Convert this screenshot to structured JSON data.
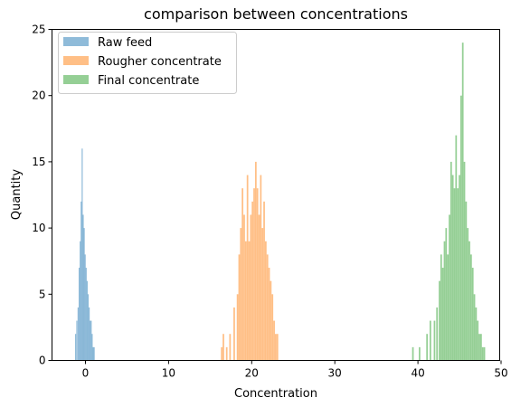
{
  "chart_data": {
    "type": "histogram",
    "title": "comparison between concentrations",
    "xlabel": "Concentration",
    "ylabel": "Quantity",
    "xlim": [
      -2.5,
      50.5
    ],
    "ylim": [
      0,
      25
    ],
    "xticks": [
      0,
      10,
      20,
      30,
      40,
      50
    ],
    "yticks": [
      0,
      5,
      10,
      15,
      20,
      25
    ],
    "grid": false,
    "legend_position": "top-left",
    "series": [
      {
        "name": "Raw feed",
        "color": "#1f77b4",
        "bin_width": 0.12,
        "bins": [
          [
            -1.25,
            2
          ],
          [
            -1.1,
            3
          ],
          [
            -0.95,
            4
          ],
          [
            -0.82,
            7
          ],
          [
            -0.7,
            9
          ],
          [
            -0.58,
            12
          ],
          [
            -0.46,
            16
          ],
          [
            -0.34,
            11
          ],
          [
            -0.22,
            10
          ],
          [
            -0.1,
            8
          ],
          [
            0.02,
            7
          ],
          [
            0.14,
            6
          ],
          [
            0.26,
            5
          ],
          [
            0.38,
            4
          ],
          [
            0.5,
            3
          ],
          [
            0.62,
            3
          ],
          [
            0.74,
            2
          ],
          [
            0.86,
            1
          ],
          [
            0.98,
            1
          ]
        ]
      },
      {
        "name": "Rougher concentrate",
        "color": "#ff7f0e",
        "bin_width": 0.19,
        "bins": [
          [
            16.3,
            1
          ],
          [
            16.5,
            2
          ],
          [
            16.9,
            1
          ],
          [
            17.3,
            2
          ],
          [
            17.8,
            4
          ],
          [
            18.2,
            5
          ],
          [
            18.4,
            8
          ],
          [
            18.6,
            10
          ],
          [
            18.8,
            13
          ],
          [
            19.0,
            11
          ],
          [
            19.2,
            9
          ],
          [
            19.4,
            14
          ],
          [
            19.6,
            9
          ],
          [
            19.8,
            11
          ],
          [
            20.0,
            12
          ],
          [
            20.2,
            13
          ],
          [
            20.4,
            15
          ],
          [
            20.6,
            13
          ],
          [
            20.8,
            11
          ],
          [
            21.0,
            14
          ],
          [
            21.2,
            10
          ],
          [
            21.4,
            12
          ],
          [
            21.6,
            9
          ],
          [
            21.8,
            8
          ],
          [
            22.0,
            7
          ],
          [
            22.2,
            6
          ],
          [
            22.4,
            5
          ],
          [
            22.6,
            3
          ],
          [
            22.8,
            2
          ],
          [
            23.0,
            2
          ]
        ]
      },
      {
        "name": "Final concentrate",
        "color": "#2ca02c",
        "bin_width": 0.19,
        "bins": [
          [
            39.3,
            1
          ],
          [
            40.1,
            1
          ],
          [
            41.0,
            2
          ],
          [
            41.4,
            3
          ],
          [
            41.9,
            3
          ],
          [
            42.2,
            4
          ],
          [
            42.5,
            6
          ],
          [
            42.7,
            8
          ],
          [
            42.9,
            7
          ],
          [
            43.1,
            9
          ],
          [
            43.3,
            10
          ],
          [
            43.5,
            8
          ],
          [
            43.7,
            11
          ],
          [
            43.9,
            15
          ],
          [
            44.1,
            14
          ],
          [
            44.3,
            13
          ],
          [
            44.5,
            17
          ],
          [
            44.7,
            13
          ],
          [
            44.9,
            14
          ],
          [
            45.1,
            20
          ],
          [
            45.3,
            24
          ],
          [
            45.5,
            15
          ],
          [
            45.7,
            12
          ],
          [
            45.9,
            10
          ],
          [
            46.1,
            9
          ],
          [
            46.3,
            8
          ],
          [
            46.5,
            7
          ],
          [
            46.7,
            5
          ],
          [
            46.9,
            4
          ],
          [
            47.1,
            3
          ],
          [
            47.3,
            2
          ],
          [
            47.5,
            2
          ],
          [
            47.7,
            1
          ],
          [
            47.9,
            1
          ]
        ]
      }
    ]
  }
}
